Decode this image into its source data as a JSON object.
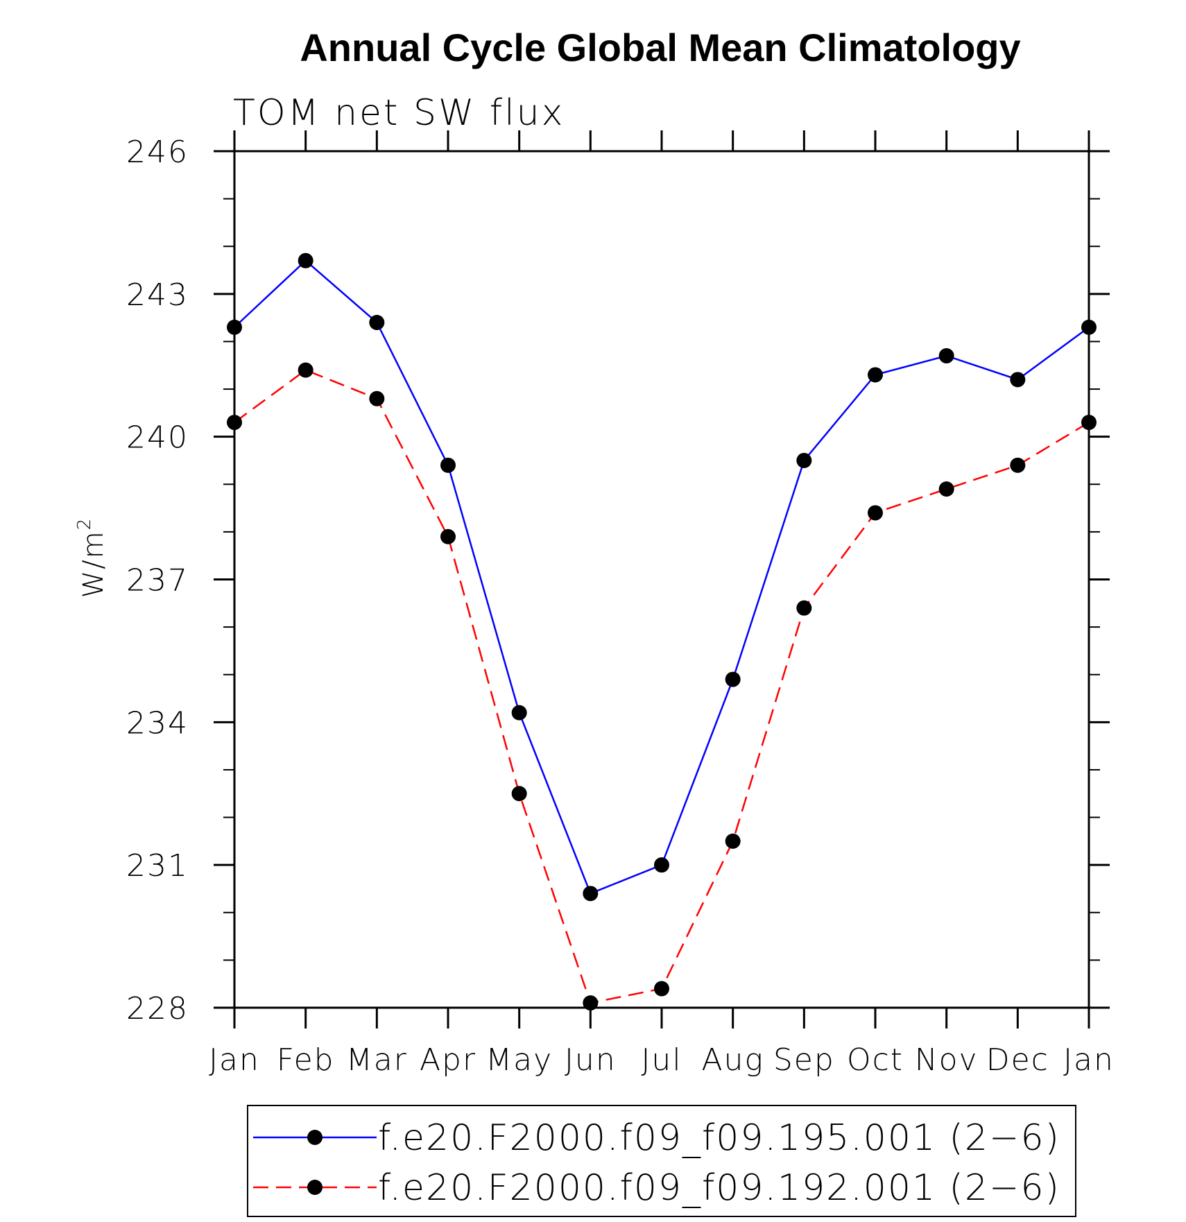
{
  "chart_data": {
    "type": "line",
    "title": "Annual Cycle Global Mean Climatology",
    "subtitle": "TOM net SW flux",
    "ylabel": "W/m",
    "ylabel_superscript": "2",
    "categories": [
      "Jan",
      "Feb",
      "Mar",
      "Apr",
      "May",
      "Jun",
      "Jul",
      "Aug",
      "Sep",
      "Oct",
      "Nov",
      "Dec",
      "Jan"
    ],
    "ylim": [
      228,
      246
    ],
    "yticks": [
      "228",
      "231",
      "234",
      "237",
      "240",
      "243",
      "246"
    ],
    "grid": false,
    "legend_position": "bottom",
    "series": [
      {
        "name": "f.e20.F2000.f09_f09.195.001 (2−6)",
        "color": "#0000ff",
        "line_style": "solid",
        "marker": "filled-circle",
        "values": [
          242.3,
          243.7,
          242.4,
          239.4,
          234.2,
          230.4,
          231.0,
          234.9,
          239.5,
          241.3,
          241.7,
          241.2,
          242.3
        ]
      },
      {
        "name": "f.e20.F2000.f09_f09.192.001 (2−6)",
        "color": "#ff0000",
        "line_style": "dashed",
        "marker": "filled-circle",
        "values": [
          240.3,
          241.4,
          240.8,
          237.9,
          232.5,
          228.1,
          228.4,
          231.5,
          236.4,
          238.4,
          238.9,
          239.4,
          240.3
        ]
      }
    ]
  }
}
